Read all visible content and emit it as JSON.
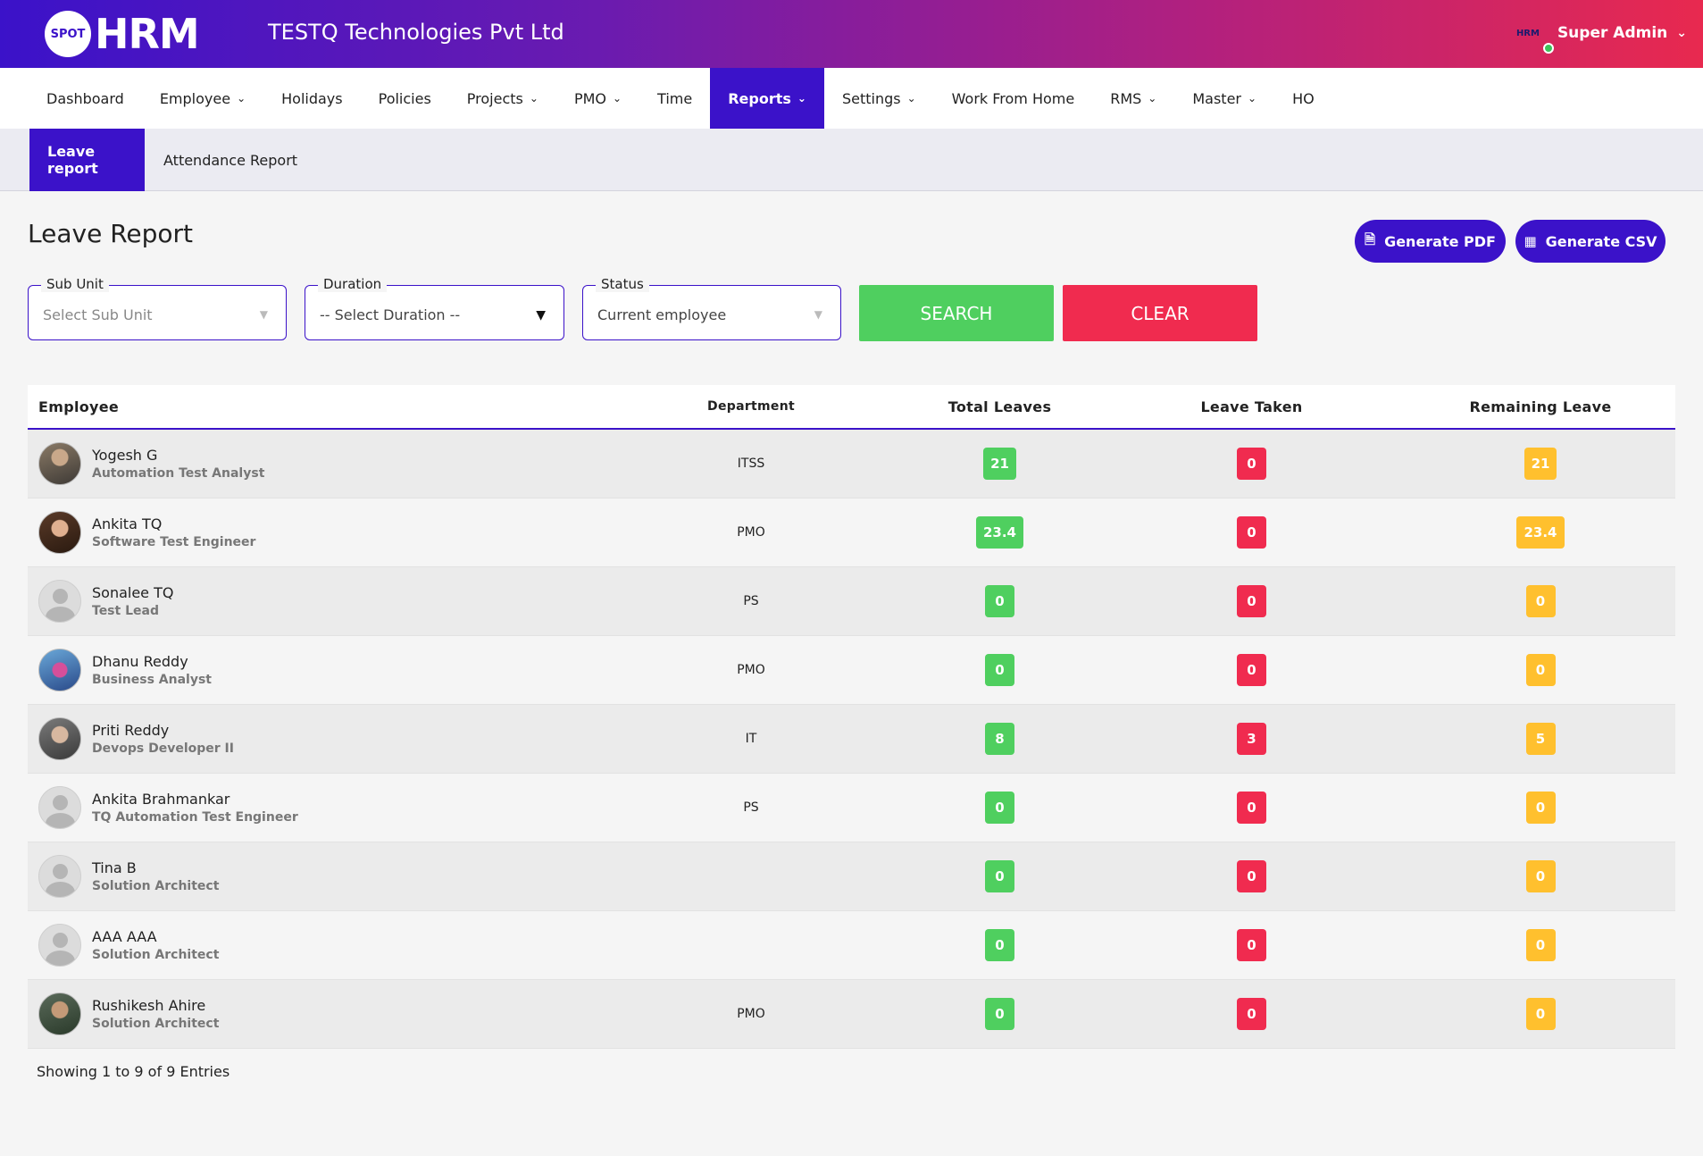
{
  "header": {
    "logo_badge": "SPOT",
    "logo_text": "HRM",
    "company": "TESTQ Technologies Pvt Ltd",
    "user_avatar_text": "HRM",
    "user_name": "Super Admin",
    "gradient_start": "#3b12c9",
    "gradient_end": "#e8294f"
  },
  "nav": {
    "items": [
      {
        "label": "Dashboard"
      },
      {
        "label": "Employee",
        "dropdown": true
      },
      {
        "label": "Holidays"
      },
      {
        "label": "Policies"
      },
      {
        "label": "Projects",
        "dropdown": true
      },
      {
        "label": "PMO",
        "dropdown": true
      },
      {
        "label": "Time"
      },
      {
        "label": "Reports",
        "dropdown": true,
        "active": true
      },
      {
        "label": "Settings",
        "dropdown": true
      },
      {
        "label": "Work From Home"
      },
      {
        "label": "RMS",
        "dropdown": true
      },
      {
        "label": "Master",
        "dropdown": true
      },
      {
        "label": "HO"
      }
    ]
  },
  "subnav": {
    "tabs": [
      {
        "label": "Leave report",
        "active": true
      },
      {
        "label": "Attendance Report"
      }
    ]
  },
  "page": {
    "title": "Leave Report",
    "generate_pdf": "Generate PDF",
    "generate_csv": "Generate CSV"
  },
  "filters": {
    "sub_unit": {
      "label": "Sub Unit",
      "value": "Select Sub Unit"
    },
    "duration": {
      "label": "Duration",
      "value": "-- Select Duration --"
    },
    "status": {
      "label": "Status",
      "value": "Current employee"
    },
    "search": "SEARCH",
    "clear": "CLEAR"
  },
  "table": {
    "columns": [
      "Employee",
      "Department",
      "Total Leaves",
      "Leave Taken",
      "Remaining Leave"
    ],
    "rows": [
      {
        "name": "Yogesh G",
        "role": "Automation Test Analyst",
        "department": "ITSS",
        "total": "21",
        "taken": "0",
        "remaining": "21",
        "avatar": "photo"
      },
      {
        "name": "Ankita TQ",
        "role": "Software Test Engineer",
        "department": "PMO",
        "total": "23.4",
        "taken": "0",
        "remaining": "23.4",
        "avatar": "photo"
      },
      {
        "name": "Sonalee TQ",
        "role": "Test Lead",
        "department": "PS",
        "total": "0",
        "taken": "0",
        "remaining": "0",
        "avatar": "default"
      },
      {
        "name": "Dhanu Reddy",
        "role": "Business Analyst",
        "department": "PMO",
        "total": "0",
        "taken": "0",
        "remaining": "0",
        "avatar": "photo"
      },
      {
        "name": "Priti Reddy",
        "role": "Devops Developer II",
        "department": "IT",
        "total": "8",
        "taken": "3",
        "remaining": "5",
        "avatar": "photo"
      },
      {
        "name": "Ankita Brahmankar",
        "role": "TQ Automation Test Engineer",
        "department": "PS",
        "total": "0",
        "taken": "0",
        "remaining": "0",
        "avatar": "default"
      },
      {
        "name": "Tina B",
        "role": "Solution Architect",
        "department": "",
        "total": "0",
        "taken": "0",
        "remaining": "0",
        "avatar": "default"
      },
      {
        "name": "AAA AAA",
        "role": "Solution Architect",
        "department": "",
        "total": "0",
        "taken": "0",
        "remaining": "0",
        "avatar": "default"
      },
      {
        "name": "Rushikesh Ahire",
        "role": "Solution Architect",
        "department": "PMO",
        "total": "0",
        "taken": "0",
        "remaining": "0",
        "avatar": "photo"
      }
    ],
    "footer": "Showing 1 to 9 of 9 Entries"
  },
  "colors": {
    "primary": "#3b12c9",
    "green": "#4fcf5f",
    "red": "#f02b4f",
    "yellow": "#ffc02e"
  }
}
